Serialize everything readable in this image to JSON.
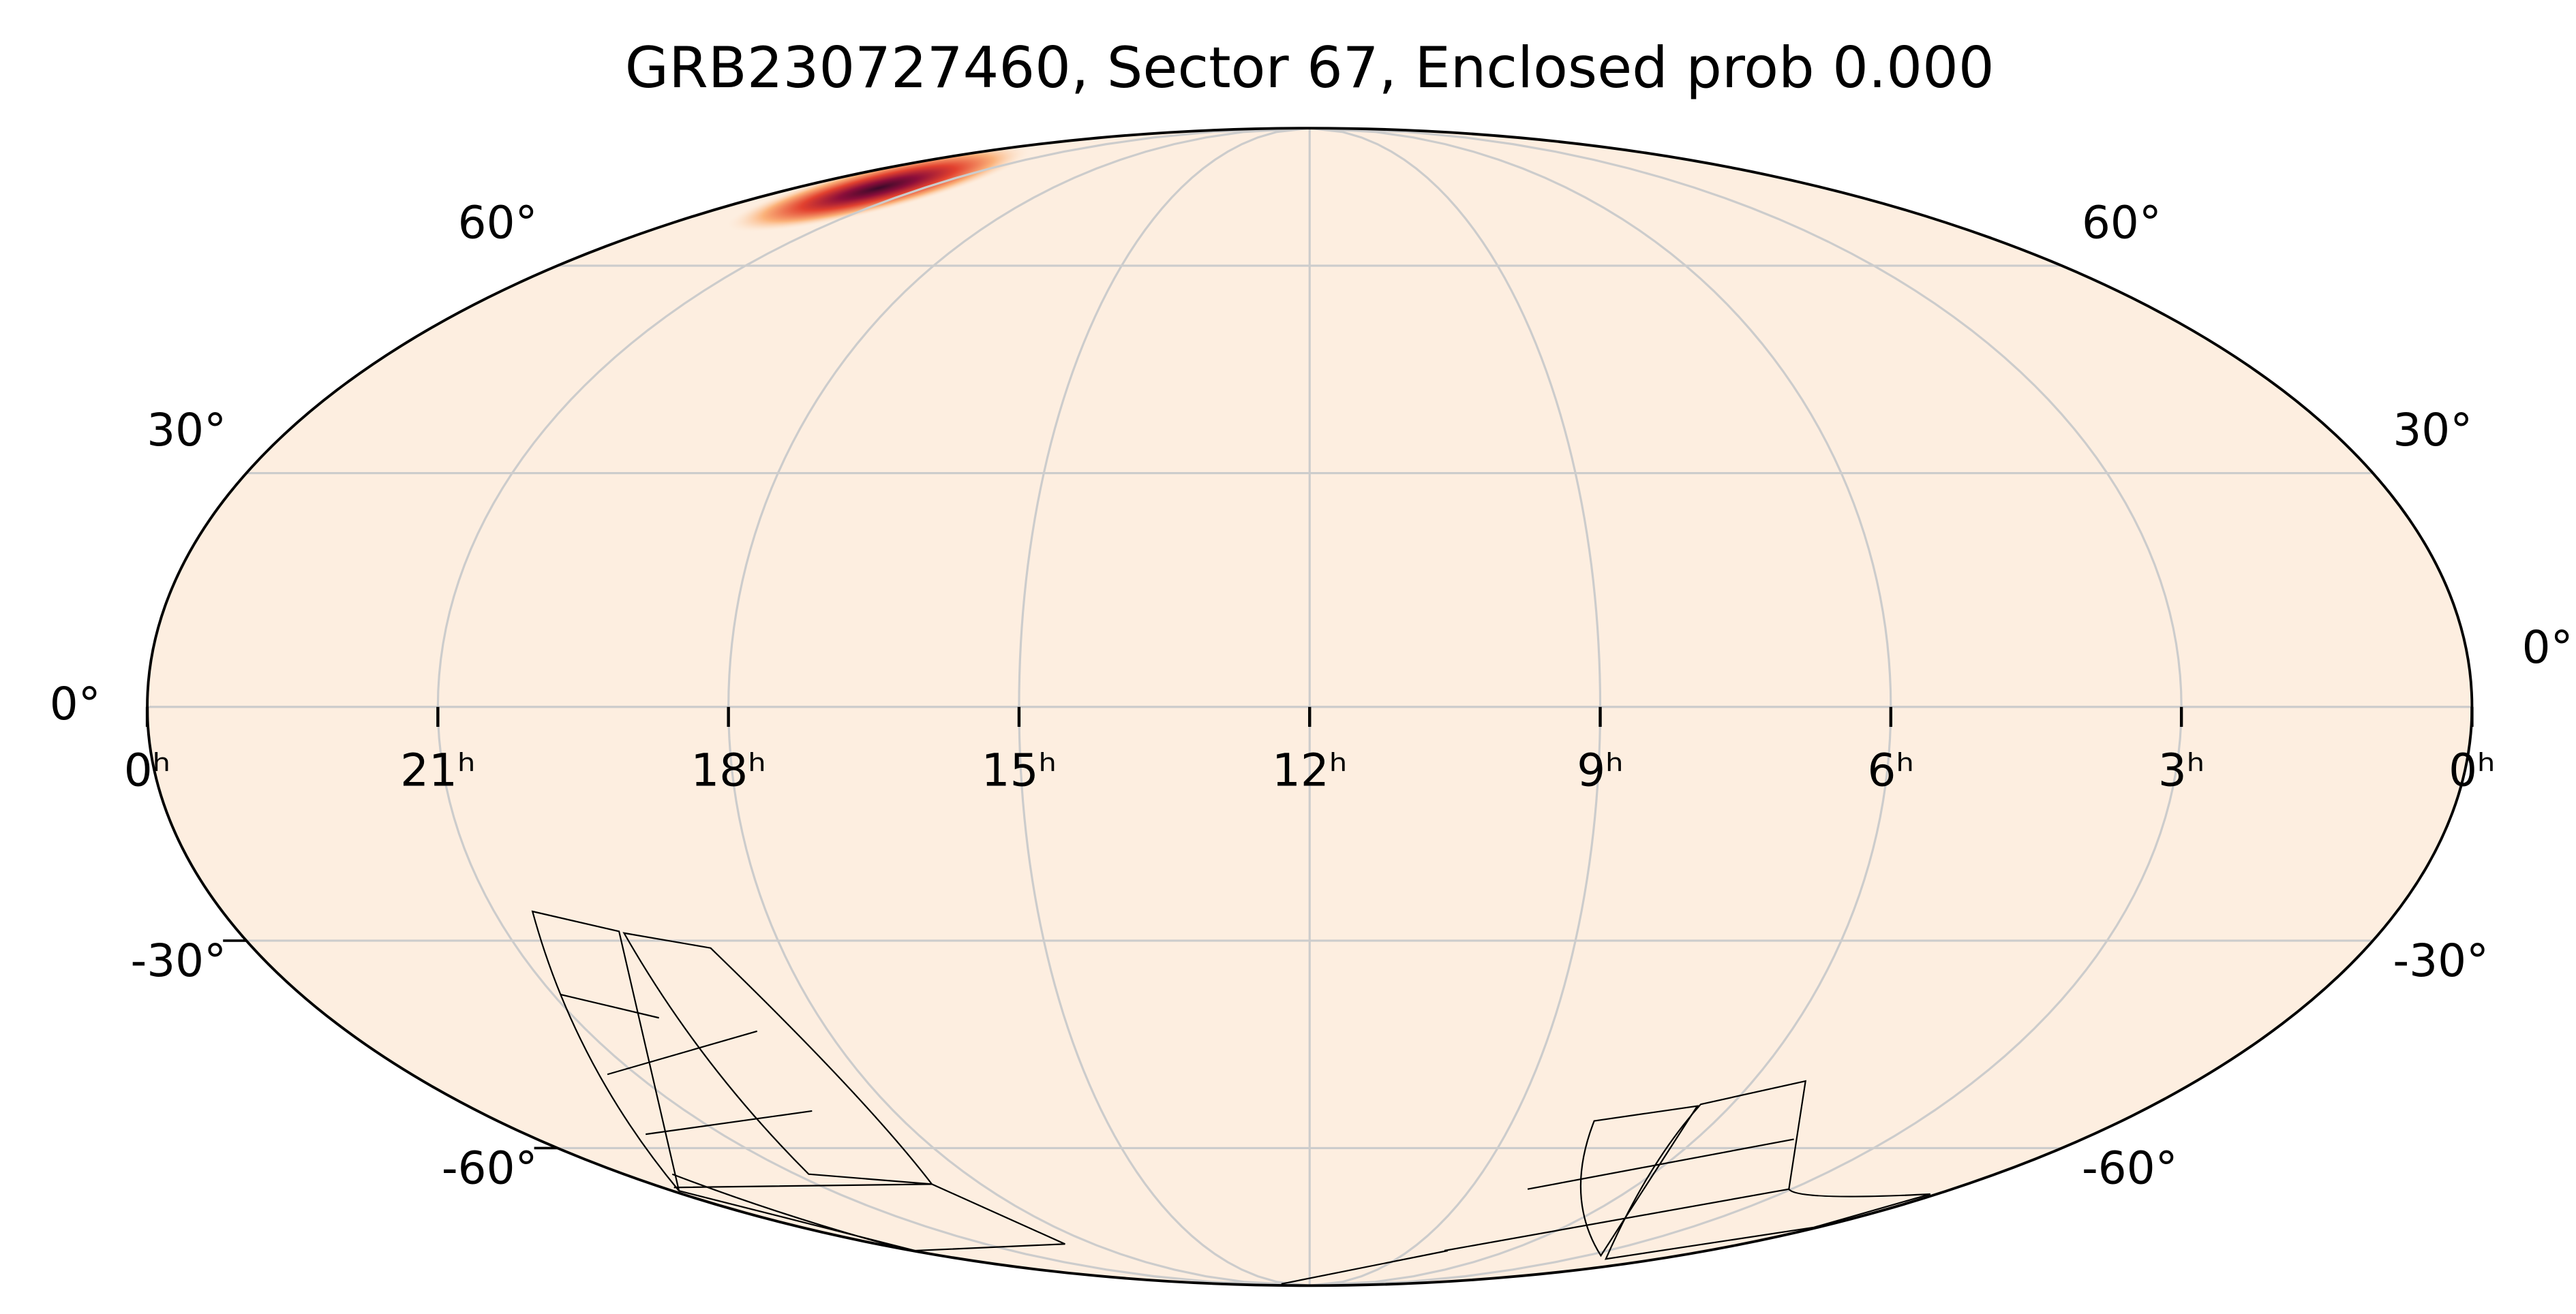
{
  "chart_data": {
    "type": "mollweide",
    "title": "GRB230727460, Sector 67, Enclosed prob 0.000",
    "xlim": [
      24,
      0
    ],
    "xticks": [
      {
        "value": 24,
        "label": "0ʰ"
      },
      {
        "value": 21,
        "label": "21ʰ"
      },
      {
        "value": 18,
        "label": "18ʰ"
      },
      {
        "value": 15,
        "label": "15ʰ"
      },
      {
        "value": 12,
        "label": "12ʰ"
      },
      {
        "value": 9,
        "label": "9ʰ"
      },
      {
        "value": 6,
        "label": "6ʰ"
      },
      {
        "value": 3,
        "label": "3ʰ"
      },
      {
        "value": 0,
        "label": "0ʰ"
      }
    ],
    "ylim": [
      -90,
      90
    ],
    "yticks": [
      {
        "value": -60,
        "label": "-60°"
      },
      {
        "value": -30,
        "label": "-30°"
      },
      {
        "value": 0,
        "label": "0°"
      },
      {
        "value": 30,
        "label": "30°"
      },
      {
        "value": 60,
        "label": "60°"
      }
    ],
    "grid": true
  }
}
